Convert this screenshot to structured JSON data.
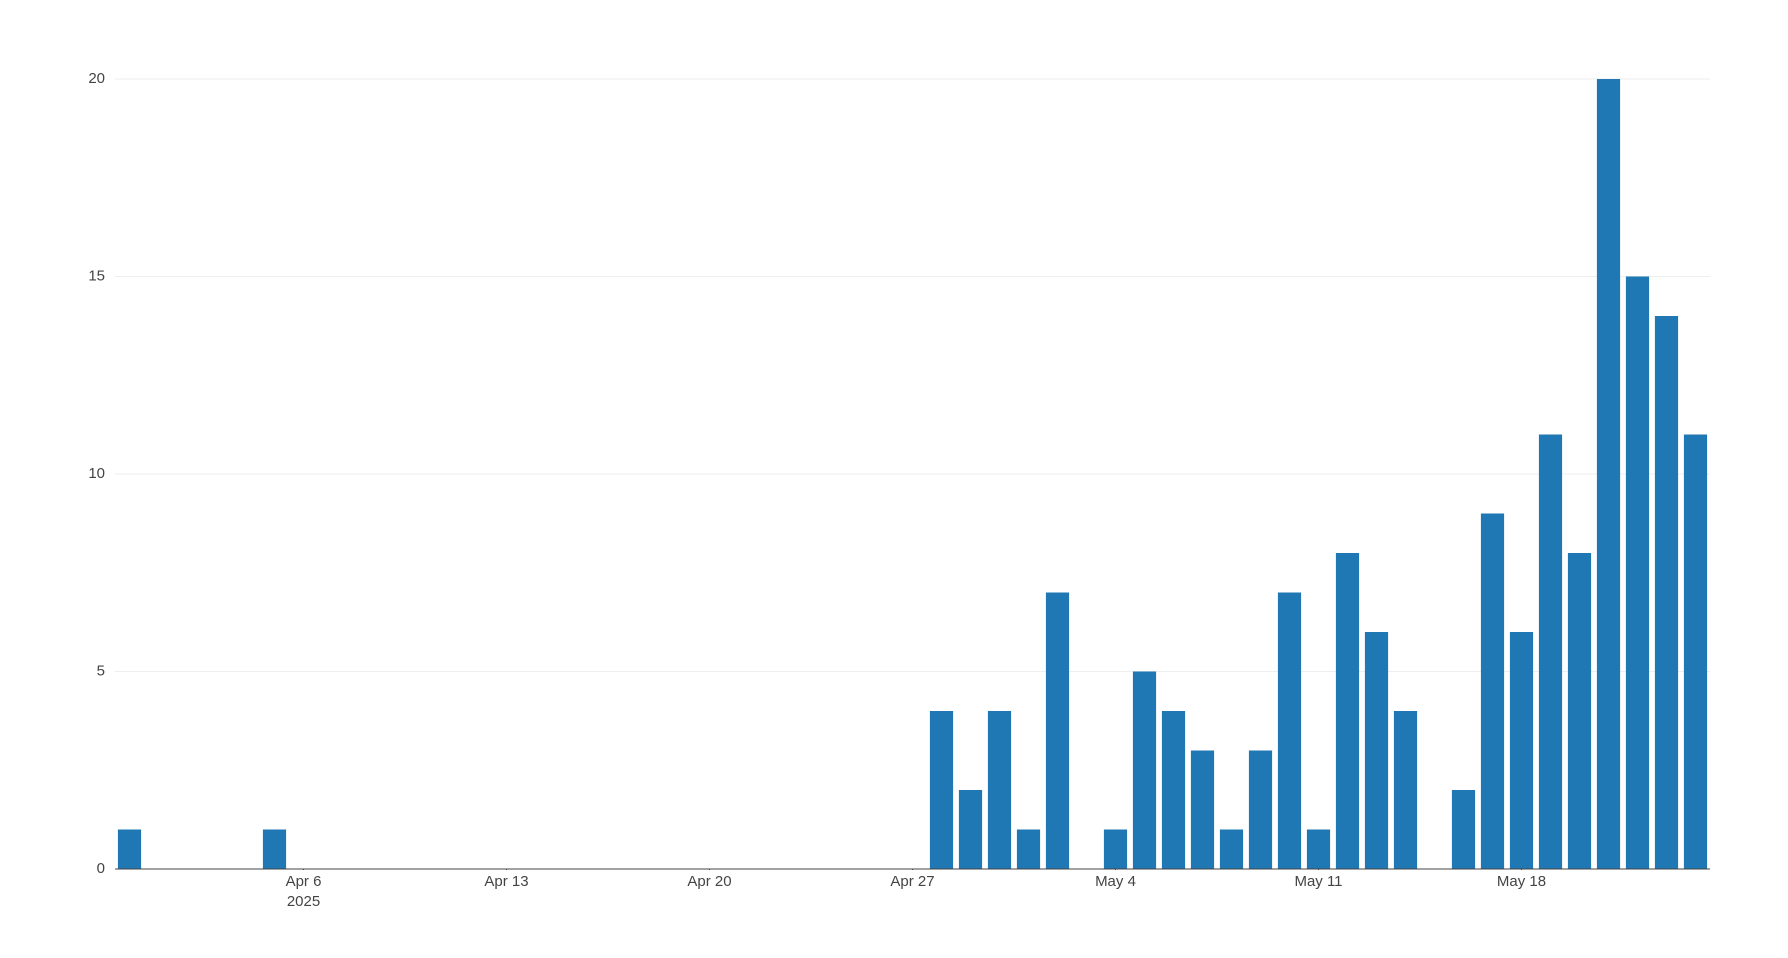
{
  "chart_data": {
    "type": "bar",
    "color": "#1f77b4",
    "grid": true,
    "x": [
      "2025-03-31",
      "2025-04-05",
      "2025-04-28",
      "2025-04-29",
      "2025-04-30",
      "2025-05-01",
      "2025-05-02",
      "2025-05-04",
      "2025-05-05",
      "2025-05-06",
      "2025-05-07",
      "2025-05-08",
      "2025-05-09",
      "2025-05-10",
      "2025-05-11",
      "2025-05-12",
      "2025-05-13",
      "2025-05-14",
      "2025-05-16",
      "2025-05-17",
      "2025-05-18",
      "2025-05-19",
      "2025-05-20",
      "2025-05-21",
      "2025-05-22",
      "2025-05-23",
      "2025-05-24"
    ],
    "values": [
      1,
      1,
      4,
      2,
      4,
      1,
      7,
      1,
      5,
      4,
      3,
      1,
      3,
      7,
      1,
      8,
      6,
      4,
      2,
      9,
      6,
      11,
      8,
      20,
      15,
      14,
      11
    ],
    "xlim": [
      "2025-03-30T12:00",
      "2025-05-24T12:00"
    ],
    "xticks": [
      {
        "value": "2025-04-06",
        "label": "Apr 6"
      },
      {
        "value": "2025-04-13",
        "label": "Apr 13"
      },
      {
        "value": "2025-04-20",
        "label": "Apr 20"
      },
      {
        "value": "2025-04-27",
        "label": "Apr 27"
      },
      {
        "value": "2025-05-04",
        "label": "May 4"
      },
      {
        "value": "2025-05-11",
        "label": "May 11"
      },
      {
        "value": "2025-05-18",
        "label": "May 18"
      }
    ],
    "x_year_label": "2025",
    "ylim": [
      0,
      20
    ],
    "yticks": [
      0,
      5,
      10,
      15,
      20
    ]
  }
}
